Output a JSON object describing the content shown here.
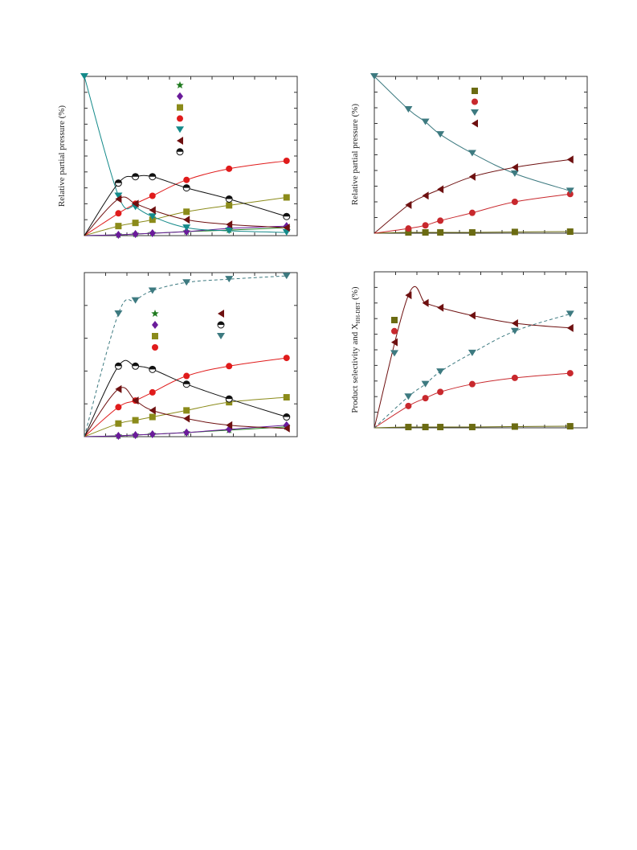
{
  "colors": {
    "green": "#1f7a1f",
    "purple": "#6a1b9a",
    "olive": "#8b8b1a",
    "olive_dark": "#6b6b12",
    "red": "#e01b1b",
    "red_dark": "#c8282d",
    "teal": "#148a8a",
    "slate_teal": "#3d7a80",
    "maroon": "#6e1010",
    "black": "#111111"
  },
  "chart_data": [
    {
      "id": "a",
      "type": "scatter",
      "title": "",
      "xlabel": "",
      "ylabel": "Relative partial pressure (%)",
      "xlim": [
        0,
        100
      ],
      "ylim": [
        0,
        100
      ],
      "grid": false,
      "legend_position": "top-center",
      "x": [
        0,
        16,
        24,
        32,
        48,
        68,
        95
      ],
      "series": [
        {
          "marker": "star",
          "color": "#1f7a1f",
          "line": "solid",
          "values": [
            0,
            0.5,
            1,
            1.5,
            2.5,
            3.5,
            5
          ]
        },
        {
          "marker": "diamond",
          "color": "#6a1b9a",
          "line": "solid",
          "values": [
            0,
            0.5,
            1,
            1.5,
            2.5,
            4.5,
            6
          ]
        },
        {
          "marker": "square",
          "color": "#8b8b1a",
          "line": "solid",
          "values": [
            0,
            6,
            8,
            10,
            15,
            19,
            24
          ]
        },
        {
          "marker": "circle",
          "color": "#e01b1b",
          "line": "solid",
          "values": [
            0,
            14,
            20,
            25,
            35,
            42,
            47
          ]
        },
        {
          "marker": "triangle-down",
          "color": "#148a8a",
          "line": "solid",
          "values": [
            100,
            25,
            18,
            12,
            5,
            3,
            2
          ]
        },
        {
          "marker": "triangle-left",
          "color": "#6e1010",
          "line": "solid",
          "values": [
            0,
            23,
            20,
            16,
            10,
            7,
            5
          ]
        },
        {
          "marker": "half-circle",
          "color": "#111111",
          "line": "solid",
          "values": [
            0,
            33,
            37,
            37,
            30,
            23,
            12
          ]
        }
      ]
    },
    {
      "id": "b",
      "type": "scatter",
      "title": "",
      "xlabel": "",
      "ylabel": "Relative partial pressure (%)",
      "xlim": [
        0,
        100
      ],
      "ylim": [
        0,
        100
      ],
      "grid": false,
      "legend_position": "top-center",
      "x": [
        0,
        16,
        24,
        31,
        46,
        66,
        92
      ],
      "series": [
        {
          "marker": "square",
          "color": "#6b6b12",
          "line": "solid",
          "values": [
            0,
            0.5,
            0.5,
            0.5,
            0.5,
            0.8,
            1
          ]
        },
        {
          "marker": "circle",
          "color": "#c8282d",
          "line": "solid",
          "values": [
            0,
            3,
            5,
            8,
            13,
            20,
            25
          ]
        },
        {
          "marker": "triangle-down",
          "color": "#3d7a80",
          "line": "solid",
          "values": [
            100,
            79,
            71,
            63,
            51,
            38,
            27
          ]
        },
        {
          "marker": "triangle-left",
          "color": "#6e1010",
          "line": "solid",
          "values": [
            0,
            18,
            24,
            28,
            36,
            42,
            47
          ]
        }
      ]
    },
    {
      "id": "c",
      "type": "scatter",
      "title": "",
      "xlabel": "",
      "ylabel": "",
      "xlim": [
        0,
        100
      ],
      "ylim": [
        0,
        100
      ],
      "grid": false,
      "legend_position": "top-center",
      "x": [
        0,
        16,
        24,
        32,
        48,
        68,
        95
      ],
      "series": [
        {
          "marker": "star",
          "color": "#1f7a1f",
          "line": "solid",
          "values": [
            0,
            0.5,
            1,
            1.5,
            2.5,
            4,
            6
          ]
        },
        {
          "marker": "diamond",
          "color": "#6a1b9a",
          "line": "solid",
          "values": [
            0,
            0.5,
            1,
            1.5,
            2.5,
            4.5,
            7
          ]
        },
        {
          "marker": "square",
          "color": "#8b8b1a",
          "line": "solid",
          "values": [
            0,
            8,
            10,
            12,
            16,
            21,
            24
          ]
        },
        {
          "marker": "circle",
          "color": "#e01b1b",
          "line": "solid",
          "values": [
            0,
            18,
            22,
            27,
            37,
            43,
            48
          ]
        },
        {
          "marker": "triangle-left",
          "color": "#6e1010",
          "line": "solid",
          "values": [
            0,
            29,
            22,
            16,
            11,
            7,
            5
          ]
        },
        {
          "marker": "half-circle",
          "color": "#111111",
          "line": "solid",
          "values": [
            0,
            43,
            43,
            41,
            32,
            23,
            12
          ]
        },
        {
          "marker": "triangle-down",
          "color": "#3d7a80",
          "line": "dashed",
          "values": [
            0,
            75,
            83,
            89,
            94,
            96,
            98
          ]
        }
      ]
    },
    {
      "id": "d",
      "type": "scatter",
      "title": "",
      "xlabel": "",
      "ylabel": "Product selectivity and X",
      "ylabel_sub": "HH-DBT",
      "ylabel_suffix": " (%)",
      "xlim": [
        0,
        100
      ],
      "ylim": [
        0,
        100
      ],
      "grid": false,
      "legend_position": "top-left",
      "x": [
        0,
        16,
        24,
        31,
        46,
        66,
        92
      ],
      "series": [
        {
          "marker": "square",
          "color": "#6b6b12",
          "line": "solid",
          "values": [
            0,
            0.5,
            0.5,
            0.5,
            0.5,
            0.8,
            1
          ]
        },
        {
          "marker": "circle",
          "color": "#c8282d",
          "line": "solid",
          "values": [
            0,
            14,
            19,
            23,
            28,
            32,
            35
          ]
        },
        {
          "marker": "triangle-left",
          "color": "#6e1010",
          "line": "solid",
          "values": [
            0,
            85,
            80,
            77,
            72,
            67,
            64
          ]
        },
        {
          "marker": "triangle-down",
          "color": "#3d7a80",
          "line": "dashed",
          "values": [
            0,
            20,
            28,
            36,
            48,
            62,
            73
          ]
        }
      ]
    }
  ]
}
